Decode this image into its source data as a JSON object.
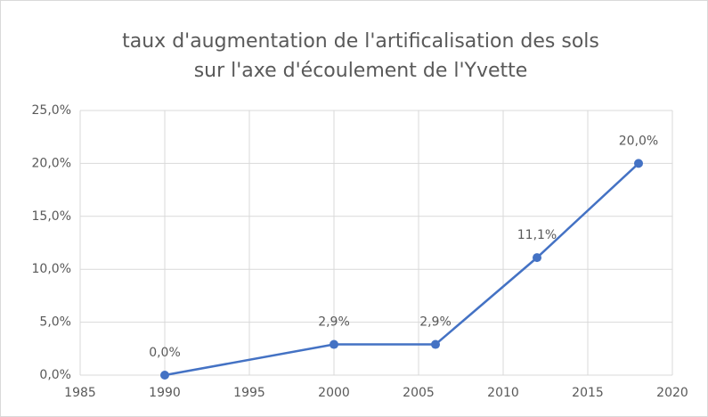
{
  "chart_data": {
    "type": "line",
    "title": [
      "taux d'augmentation de l'artificalisation des sols",
      "sur l'axe d'écoulement  de l'Yvette"
    ],
    "x": [
      1990,
      2000,
      2006,
      2012,
      2018
    ],
    "series": [
      {
        "color": "#4472c4",
        "values": [
          0,
          2.9,
          2.9,
          11.1,
          20.0
        ],
        "value_labels": [
          "0,0%",
          "2,9%",
          "2,9%",
          "11,1%",
          "20,0%"
        ]
      }
    ],
    "xlim": [
      1985,
      2020
    ],
    "xticks": [
      1985,
      1990,
      1995,
      2000,
      2005,
      2010,
      2015,
      2020
    ],
    "ylim": [
      0,
      25
    ],
    "yticks": [
      {
        "value": 0,
        "label": "0,0%"
      },
      {
        "value": 5,
        "label": "5,0%"
      },
      {
        "value": 10,
        "label": "10,0%"
      },
      {
        "value": 15,
        "label": "15,0%"
      },
      {
        "value": 20,
        "label": "20,0%"
      },
      {
        "value": 25,
        "label": "25,0%"
      }
    ],
    "grid": true
  }
}
